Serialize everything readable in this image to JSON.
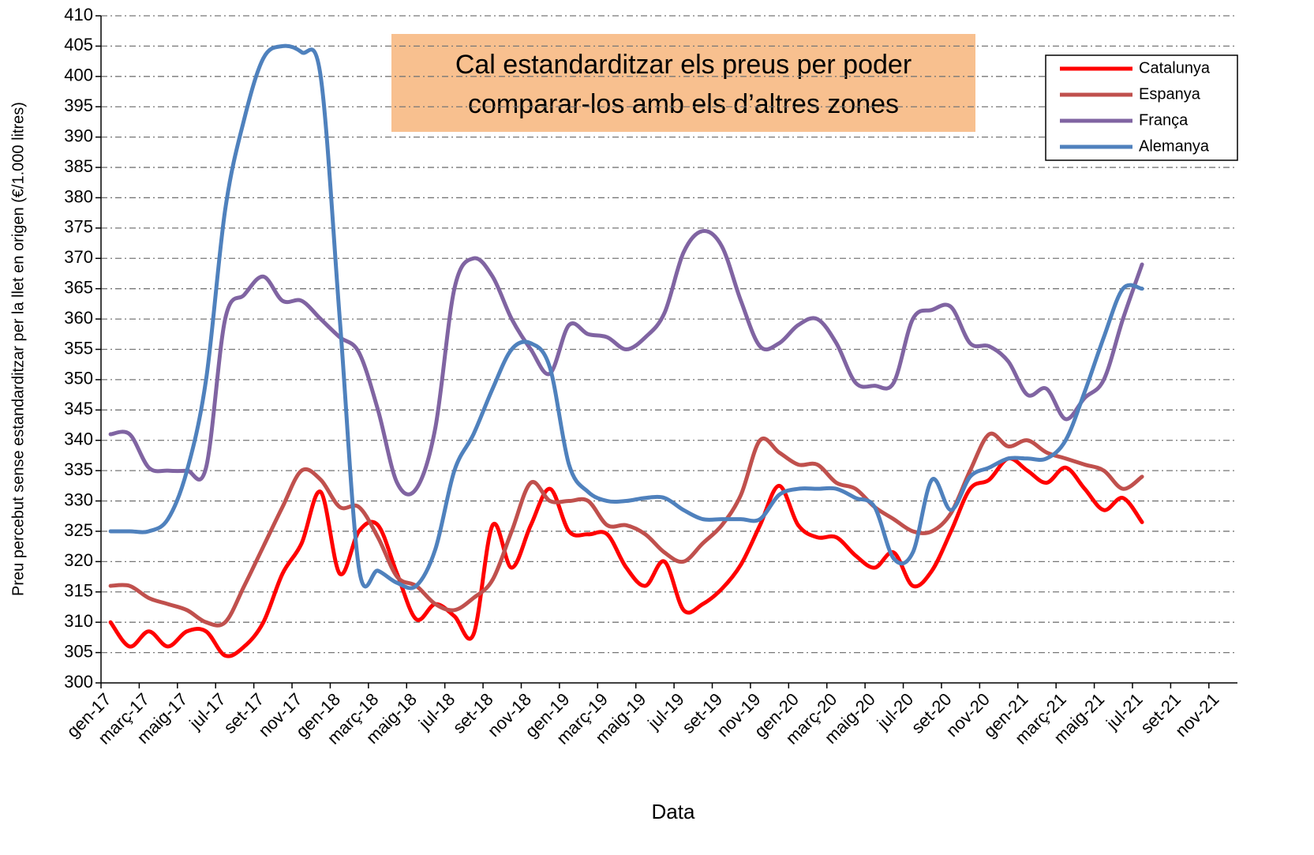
{
  "chart_data": {
    "type": "line",
    "annotation": [
      "Cal estandarditzar els preus per poder",
      "comparar-los amb els d’altres zones"
    ],
    "x_label": "Data",
    "y_label": "Preu percebut sense estandarditzar per la llet en origen (€/1.000 litres)",
    "categories": [
      "gen-17",
      null,
      "març-17",
      null,
      "maig-17",
      null,
      "jul-17",
      null,
      "set-17",
      null,
      "nov-17",
      null,
      "gen-18",
      null,
      "març-18",
      null,
      "maig-18",
      null,
      "jul-18",
      null,
      "set-18",
      null,
      "nov-18",
      null,
      "gen-19",
      null,
      "març-19",
      null,
      "maig-19",
      null,
      "jul-19",
      null,
      "set-19",
      null,
      "nov-19",
      null,
      "gen-20",
      null,
      "març-20",
      null,
      "maig-20",
      null,
      "jul-20",
      null,
      "set-20",
      null,
      "nov-20",
      null,
      "gen-21",
      null,
      "març-21",
      null,
      "maig-21",
      null,
      "jul-21",
      null,
      "set-21",
      null,
      "nov-21"
    ],
    "series": [
      {
        "name": "Catalunya",
        "color": "#ff0000",
        "values": [
          310,
          306,
          308.5,
          306,
          308.5,
          308.5,
          304.5,
          306,
          310,
          318,
          323,
          331.5,
          318,
          325,
          326,
          318,
          310.5,
          313,
          311,
          308,
          326,
          319,
          326,
          332,
          325,
          324.5,
          324.5,
          319,
          316,
          320,
          312,
          313,
          315.5,
          319.5,
          326,
          332.5,
          326,
          324,
          324,
          321,
          319,
          321.5,
          316,
          318.5,
          325,
          332,
          333.5,
          337,
          335,
          333,
          335.5,
          332,
          328.5,
          330.5,
          326.5,
          null,
          null,
          null,
          null
        ]
      },
      {
        "name": "Espanya",
        "color": "#c0504d",
        "values": [
          316,
          316,
          314,
          313,
          312,
          310,
          310,
          316,
          322.5,
          329,
          335,
          333.5,
          329,
          329,
          324,
          317.5,
          316,
          313,
          312,
          314,
          317,
          325,
          333,
          330,
          330,
          330,
          326,
          326,
          324.5,
          321.5,
          320,
          323,
          326,
          331,
          340,
          338,
          336,
          336,
          333,
          332,
          329,
          327,
          325,
          325,
          328,
          335,
          341,
          339,
          340,
          338,
          337,
          336,
          335,
          332,
          334,
          null,
          null,
          null,
          null
        ]
      },
      {
        "name": "França",
        "color": "#8064a2",
        "values": [
          341,
          341,
          335.5,
          335,
          335,
          335.5,
          360,
          364,
          367,
          363,
          363,
          360,
          357,
          354.5,
          345,
          333,
          332,
          342,
          365,
          370,
          367,
          360,
          355,
          351,
          359,
          357.5,
          357,
          355,
          357,
          361,
          371,
          374.5,
          372,
          363,
          355.5,
          356,
          359,
          360,
          356,
          349.5,
          349,
          349.5,
          360,
          361.5,
          362,
          356,
          355.5,
          353,
          347.5,
          348.5,
          343.5,
          347,
          350,
          360,
          369,
          null,
          null,
          null,
          null
        ]
      },
      {
        "name": "Alemanya",
        "color": "#4f81bd",
        "values": [
          325,
          325,
          325,
          327,
          335,
          350,
          378,
          393,
          403,
          405,
          404,
          400,
          360,
          319,
          318.5,
          316.5,
          316,
          322,
          335,
          341,
          348.5,
          355,
          356,
          352,
          336,
          331.5,
          330,
          330,
          330.5,
          330.5,
          328.5,
          327,
          327,
          327,
          327,
          331,
          332,
          332,
          332,
          330.5,
          329,
          320.5,
          321.5,
          333.5,
          328.5,
          334,
          335.5,
          337,
          337,
          337,
          340,
          348,
          357,
          365,
          365,
          null,
          null,
          null,
          null
        ]
      }
    ],
    "ylim": [
      300,
      410
    ],
    "yticks": [
      300,
      305,
      310,
      315,
      320,
      325,
      330,
      335,
      340,
      345,
      350,
      355,
      360,
      365,
      370,
      375,
      380,
      385,
      390,
      395,
      400,
      405,
      410
    ],
    "grid": true,
    "legend": "upper right"
  }
}
